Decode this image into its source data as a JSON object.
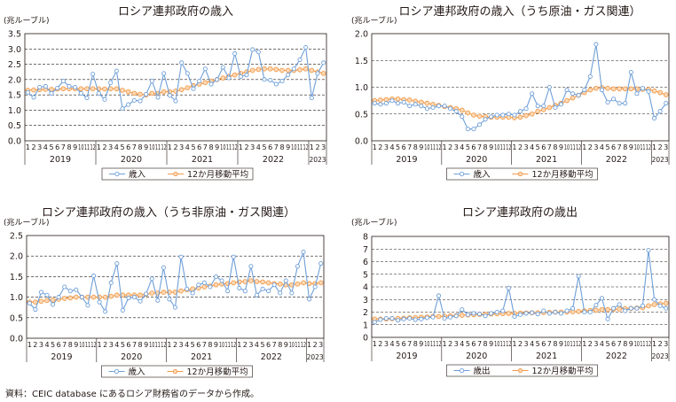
{
  "colors": {
    "series": "#6f9fd8",
    "moving_avg": "#f29a4a",
    "grid": "#231815",
    "text": "#231815"
  },
  "source_note": "資料：CEIC database にあるロシア財務省のデータから作成。",
  "chart_data": [
    {
      "type": "line",
      "title": "ロシア連邦政府の歳入",
      "unit_label": "(兆ルーブル)",
      "ylim": [
        0,
        3.5
      ],
      "yticks": [
        "0.0",
        "0.5",
        "1.0",
        "1.5",
        "2.0",
        "2.5",
        "3.0",
        "3.5"
      ],
      "month_labels": [
        "1",
        "2",
        "3",
        "4",
        "5",
        "6",
        "7",
        "8",
        "9",
        "10",
        "11",
        "12"
      ],
      "year_labels": [
        "2019",
        "2020",
        "2021",
        "2022",
        "2023"
      ],
      "x_note": "monthly, Jan 2019 – Mar 2023",
      "grid": "horizontal dashed",
      "legend_position": "bottom",
      "series": [
        {
          "name": "歳入",
          "values": [
            1.58,
            1.42,
            1.75,
            1.78,
            1.55,
            1.72,
            1.95,
            1.78,
            1.75,
            1.55,
            1.4,
            2.18,
            1.55,
            1.35,
            1.9,
            2.28,
            1.05,
            1.18,
            1.32,
            1.3,
            1.52,
            1.95,
            1.42,
            2.2,
            1.48,
            1.3,
            2.55,
            2.2,
            1.7,
            1.95,
            2.35,
            1.85,
            2.0,
            2.4,
            2.05,
            2.85,
            2.1,
            2.15,
            2.98,
            2.9,
            2.0,
            1.98,
            1.85,
            1.95,
            2.15,
            2.35,
            2.65,
            3.05,
            1.4,
            2.2,
            2.55
          ]
        },
        {
          "name": "12か月移動平均",
          "values": [
            1.65,
            1.66,
            1.67,
            1.68,
            1.68,
            1.69,
            1.7,
            1.7,
            1.7,
            1.7,
            1.7,
            1.7,
            1.7,
            1.69,
            1.7,
            1.7,
            1.65,
            1.6,
            1.55,
            1.52,
            1.5,
            1.55,
            1.55,
            1.6,
            1.6,
            1.62,
            1.67,
            1.73,
            1.8,
            1.85,
            1.9,
            1.95,
            2.0,
            2.05,
            2.1,
            2.15,
            2.2,
            2.25,
            2.3,
            2.33,
            2.35,
            2.35,
            2.33,
            2.3,
            2.3,
            2.3,
            2.32,
            2.35,
            2.3,
            2.25,
            2.2
          ]
        }
      ]
    },
    {
      "type": "line",
      "title": "ロシア連邦政府の歳入（うち原油・ガス関連）",
      "unit_label": "(兆ルーブル)",
      "ylim": [
        0,
        2.0
      ],
      "yticks": [
        "0.0",
        "0.5",
        "1.0",
        "1.5",
        "2.0"
      ],
      "month_labels": [
        "1",
        "2",
        "3",
        "4",
        "5",
        "6",
        "7",
        "8",
        "9",
        "10",
        "11",
        "12"
      ],
      "year_labels": [
        "2019",
        "2020",
        "2021",
        "2022",
        "2023"
      ],
      "x_note": "monthly, Jan 2019 – Mar 2023",
      "grid": "horizontal dashed",
      "legend_position": "bottom",
      "series": [
        {
          "name": "歳入",
          "values": [
            0.7,
            0.68,
            0.7,
            0.75,
            0.7,
            0.72,
            0.65,
            0.68,
            0.65,
            0.6,
            0.62,
            0.65,
            0.65,
            0.6,
            0.55,
            0.45,
            0.22,
            0.22,
            0.3,
            0.4,
            0.45,
            0.48,
            0.48,
            0.5,
            0.48,
            0.55,
            0.6,
            0.88,
            0.65,
            0.65,
            1.0,
            0.62,
            0.68,
            0.95,
            0.88,
            0.85,
            0.95,
            1.2,
            1.8,
            0.95,
            0.72,
            0.78,
            0.7,
            0.7,
            1.28,
            0.88,
            0.98,
            0.92,
            0.42,
            0.55,
            0.7
          ]
        },
        {
          "name": "12か月移動平均",
          "values": [
            0.75,
            0.76,
            0.77,
            0.78,
            0.78,
            0.77,
            0.76,
            0.74,
            0.72,
            0.7,
            0.68,
            0.66,
            0.64,
            0.62,
            0.6,
            0.57,
            0.52,
            0.48,
            0.46,
            0.45,
            0.44,
            0.44,
            0.44,
            0.44,
            0.43,
            0.44,
            0.47,
            0.5,
            0.55,
            0.58,
            0.62,
            0.66,
            0.7,
            0.75,
            0.8,
            0.85,
            0.9,
            0.95,
            0.98,
            0.99,
            0.98,
            0.97,
            0.97,
            0.97,
            0.97,
            0.97,
            0.96,
            0.96,
            0.93,
            0.9,
            0.86
          ]
        }
      ]
    },
    {
      "type": "line",
      "title": "ロシア連邦政府の歳入（うち非原油・ガス関連）",
      "unit_label": "(兆ルーブル)",
      "ylim": [
        0,
        2.5
      ],
      "yticks": [
        "0.0",
        "0.5",
        "1.0",
        "1.5",
        "2.0",
        "2.5"
      ],
      "month_labels": [
        "1",
        "2",
        "3",
        "4",
        "5",
        "6",
        "7",
        "8",
        "9",
        "10",
        "11",
        "12"
      ],
      "year_labels": [
        "2019",
        "2020",
        "2021",
        "2022",
        "2023"
      ],
      "x_note": "monthly, Jan 2019 – Mar 2023",
      "grid": "horizontal dashed",
      "legend_position": "bottom",
      "series": [
        {
          "name": "歳入",
          "values": [
            0.85,
            0.7,
            1.12,
            1.05,
            0.82,
            1.0,
            1.25,
            1.15,
            1.18,
            1.0,
            0.8,
            1.52,
            0.88,
            0.65,
            1.35,
            1.82,
            0.68,
            0.98,
            1.0,
            0.9,
            1.08,
            1.45,
            0.92,
            1.72,
            0.95,
            0.75,
            1.98,
            1.2,
            1.1,
            1.3,
            1.35,
            1.25,
            1.5,
            1.4,
            1.15,
            1.98,
            1.22,
            1.15,
            1.75,
            1.05,
            1.2,
            1.15,
            1.3,
            1.1,
            1.4,
            1.1,
            1.75,
            2.1,
            0.95,
            1.25,
            1.82
          ]
        },
        {
          "name": "12か月移動平均",
          "values": [
            0.88,
            0.88,
            0.9,
            0.92,
            0.93,
            0.95,
            0.97,
            0.98,
            1.0,
            1.0,
            1.0,
            1.0,
            1.0,
            1.0,
            1.02,
            1.05,
            1.05,
            1.05,
            1.05,
            1.05,
            1.07,
            1.1,
            1.1,
            1.12,
            1.12,
            1.12,
            1.15,
            1.18,
            1.2,
            1.22,
            1.25,
            1.27,
            1.3,
            1.32,
            1.33,
            1.35,
            1.37,
            1.38,
            1.4,
            1.38,
            1.37,
            1.35,
            1.33,
            1.32,
            1.3,
            1.3,
            1.32,
            1.35,
            1.33,
            1.33,
            1.35
          ]
        }
      ]
    },
    {
      "type": "line",
      "title": "ロシア連邦政府の歳出",
      "unit_label": "(兆ルーブル)",
      "ylim": [
        0,
        8
      ],
      "yticks": [
        "0",
        "1",
        "2",
        "3",
        "4",
        "5",
        "6",
        "7",
        "8"
      ],
      "month_labels": [
        "1",
        "2",
        "3",
        "4",
        "5",
        "6",
        "7",
        "8",
        "9",
        "10",
        "11",
        "12"
      ],
      "year_labels": [
        "2019",
        "2020",
        "2021",
        "2022",
        "2023"
      ],
      "x_note": "monthly, Jan 2019 – Mar 2023",
      "grid": "horizontal dashed",
      "legend_position": "bottom",
      "series": [
        {
          "name": "歳出",
          "values": [
            1.2,
            1.4,
            1.5,
            1.5,
            1.35,
            1.45,
            1.5,
            1.4,
            1.45,
            1.55,
            1.6,
            3.3,
            1.5,
            1.6,
            1.7,
            2.2,
            1.8,
            1.9,
            1.85,
            1.7,
            1.9,
            2.0,
            2.1,
            3.9,
            1.65,
            1.8,
            1.9,
            1.95,
            1.85,
            2.1,
            1.9,
            2.0,
            1.9,
            2.1,
            2.3,
            4.85,
            2.0,
            2.0,
            2.55,
            3.1,
            1.45,
            2.3,
            2.6,
            2.1,
            2.3,
            2.3,
            2.5,
            6.9,
            3.0,
            2.5,
            2.3
          ]
        },
        {
          "name": "12か月移動平均",
          "values": [
            1.45,
            1.45,
            1.46,
            1.48,
            1.5,
            1.52,
            1.55,
            1.57,
            1.6,
            1.62,
            1.65,
            1.65,
            1.68,
            1.7,
            1.72,
            1.75,
            1.78,
            1.8,
            1.82,
            1.83,
            1.85,
            1.87,
            1.88,
            1.9,
            1.9,
            1.92,
            1.93,
            1.95,
            1.95,
            1.97,
            1.98,
            2.0,
            2.0,
            2.02,
            2.03,
            2.05,
            2.1,
            2.12,
            2.15,
            2.2,
            2.2,
            2.22,
            2.25,
            2.28,
            2.3,
            2.32,
            2.35,
            2.5,
            2.6,
            2.65,
            2.7
          ]
        }
      ]
    }
  ]
}
